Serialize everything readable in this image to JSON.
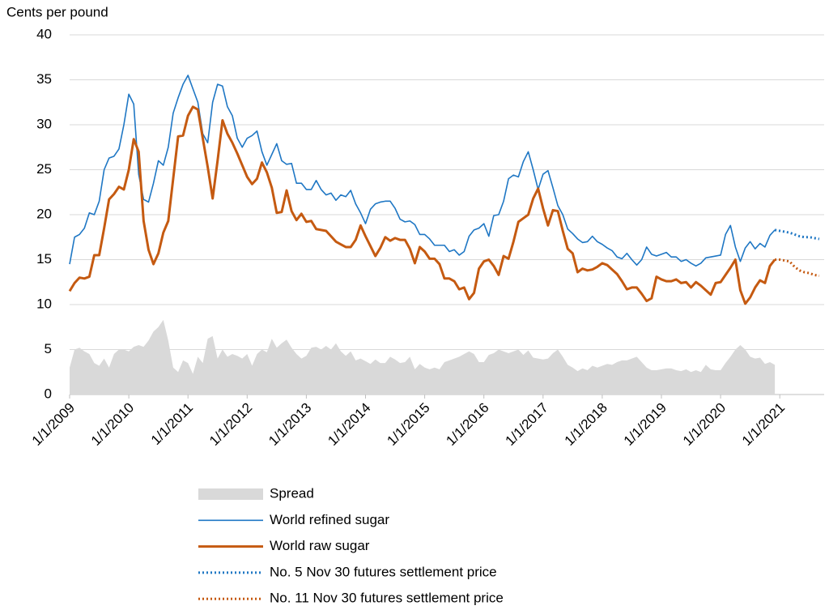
{
  "chart_data": {
    "type": "line",
    "y_label": "Cents per pound",
    "x": [
      "1/1/2009",
      "2/1/2009",
      "3/1/2009",
      "4/1/2009",
      "5/1/2009",
      "6/1/2009",
      "7/1/2009",
      "8/1/2009",
      "9/1/2009",
      "10/1/2009",
      "11/1/2009",
      "12/1/2009",
      "1/1/2010",
      "2/1/2010",
      "3/1/2010",
      "4/1/2010",
      "5/1/2010",
      "6/1/2010",
      "7/1/2010",
      "8/1/2010",
      "9/1/2010",
      "10/1/2010",
      "11/1/2010",
      "12/1/2010",
      "1/1/2011",
      "2/1/2011",
      "3/1/2011",
      "4/1/2011",
      "5/1/2011",
      "6/1/2011",
      "7/1/2011",
      "8/1/2011",
      "9/1/2011",
      "10/1/2011",
      "11/1/2011",
      "12/1/2011",
      "1/1/2012",
      "2/1/2012",
      "3/1/2012",
      "4/1/2012",
      "5/1/2012",
      "6/1/2012",
      "7/1/2012",
      "8/1/2012",
      "9/1/2012",
      "10/1/2012",
      "11/1/2012",
      "12/1/2012",
      "1/1/2013",
      "2/1/2013",
      "3/1/2013",
      "4/1/2013",
      "5/1/2013",
      "6/1/2013",
      "7/1/2013",
      "8/1/2013",
      "9/1/2013",
      "10/1/2013",
      "11/1/2013",
      "12/1/2013",
      "1/1/2014",
      "2/1/2014",
      "3/1/2014",
      "4/1/2014",
      "5/1/2014",
      "6/1/2014",
      "7/1/2014",
      "8/1/2014",
      "9/1/2014",
      "10/1/2014",
      "11/1/2014",
      "12/1/2014",
      "1/1/2015",
      "2/1/2015",
      "3/1/2015",
      "4/1/2015",
      "5/1/2015",
      "6/1/2015",
      "7/1/2015",
      "8/1/2015",
      "9/1/2015",
      "10/1/2015",
      "11/1/2015",
      "12/1/2015",
      "1/1/2016",
      "2/1/2016",
      "3/1/2016",
      "4/1/2016",
      "5/1/2016",
      "6/1/2016",
      "7/1/2016",
      "8/1/2016",
      "9/1/2016",
      "10/1/2016",
      "11/1/2016",
      "12/1/2016",
      "1/1/2017",
      "2/1/2017",
      "3/1/2017",
      "4/1/2017",
      "5/1/2017",
      "6/1/2017",
      "7/1/2017",
      "8/1/2017",
      "9/1/2017",
      "10/1/2017",
      "11/1/2017",
      "12/1/2017",
      "1/1/2018",
      "2/1/2018",
      "3/1/2018",
      "4/1/2018",
      "5/1/2018",
      "6/1/2018",
      "7/1/2018",
      "8/1/2018",
      "9/1/2018",
      "10/1/2018",
      "11/1/2018",
      "12/1/2018",
      "1/1/2019",
      "2/1/2019",
      "3/1/2019",
      "4/1/2019",
      "5/1/2019",
      "6/1/2019",
      "7/1/2019",
      "8/1/2019",
      "9/1/2019",
      "10/1/2019",
      "11/1/2019",
      "12/1/2019",
      "1/1/2020",
      "2/1/2020",
      "3/1/2020",
      "4/1/2020",
      "5/1/2020",
      "6/1/2020",
      "7/1/2020",
      "8/1/2020",
      "9/1/2020",
      "10/1/2020",
      "11/1/2020",
      "12/1/2020"
    ],
    "series": [
      {
        "name": "Spread",
        "kind": "area",
        "color": "#d9d9d9",
        "values": [
          3,
          5,
          5.2,
          4.8,
          4.5,
          3.5,
          3.2,
          4,
          3,
          4.5,
          5,
          5,
          4.8,
          5.3,
          5.5,
          5.3,
          6,
          7,
          7.5,
          8.3,
          6,
          3,
          2.5,
          3.8,
          3.5,
          2.3,
          4.2,
          3.5,
          6.2,
          6.5,
          4,
          5,
          4.2,
          4.5,
          4.3,
          4,
          4.5,
          3.2,
          4.5,
          5,
          4.7,
          6.2,
          5.2,
          5.7,
          6.1,
          5.2,
          4.5,
          4,
          4.3,
          5.2,
          5.3,
          5,
          5.4,
          5,
          5.7,
          4.8,
          4.3,
          4.8,
          3.8,
          4,
          3.7,
          3.4,
          3.9,
          3.5,
          3.5,
          4.2,
          3.9,
          3.5,
          3.6,
          4.2,
          2.8,
          3.4,
          3,
          2.8,
          3,
          2.8,
          3.6,
          3.8,
          4,
          4.2,
          4.5,
          4.8,
          4.5,
          3.6,
          3.6,
          4.4,
          4.6,
          5,
          4.8,
          4.6,
          4.8,
          5,
          4.4,
          4.9,
          4.1,
          4,
          3.9,
          4,
          4.6,
          5,
          4.2,
          3.3,
          3,
          2.6,
          2.9,
          2.7,
          3.2,
          3,
          3.2,
          3.4,
          3.3,
          3.6,
          3.8,
          3.8,
          4,
          4.2,
          3.6,
          3,
          2.7,
          2.7,
          2.8,
          2.9,
          2.9,
          2.7,
          2.6,
          2.8,
          2.5,
          2.7,
          2.5,
          3.3,
          2.8,
          2.7,
          2.7,
          3.5,
          4.2,
          5,
          5.5,
          5,
          4.2,
          4,
          4.1,
          3.4,
          3.6,
          3.3
        ]
      },
      {
        "name": "World refined sugar",
        "kind": "line",
        "color": "#1f77c4",
        "width": 1.6,
        "values": [
          14.5,
          17.5,
          17.8,
          18.5,
          20.2,
          20,
          21.5,
          25,
          26.3,
          26.5,
          27.3,
          30,
          33.4,
          32.3,
          24.5,
          21.7,
          21.4,
          23.5,
          26,
          25.5,
          27.5,
          31.3,
          33,
          34.5,
          35.5,
          34,
          32.5,
          29,
          28,
          32.5,
          34.5,
          34.3,
          32,
          31,
          28.5,
          27.5,
          28.5,
          28.8,
          29.3,
          27,
          25.5,
          26.7,
          27.9,
          26,
          25.6,
          25.7,
          23.5,
          23.5,
          22.8,
          22.8,
          23.8,
          22.8,
          22.2,
          22.4,
          21.6,
          22.2,
          22,
          22.7,
          21.2,
          20.2,
          19,
          20.6,
          21.2,
          21.4,
          21.5,
          21.5,
          20.7,
          19.5,
          19.2,
          19.3,
          18.9,
          17.8,
          17.8,
          17.3,
          16.6,
          16.6,
          16.6,
          15.9,
          16.1,
          15.5,
          15.9,
          17.6,
          18.3,
          18.5,
          19,
          17.6,
          19.9,
          20,
          21.5,
          24,
          24.4,
          24.2,
          25.9,
          27,
          25,
          22.8,
          24.5,
          24.9,
          23,
          21,
          20,
          18.4,
          17.9,
          17.3,
          16.9,
          17,
          17.6,
          17,
          16.7,
          16.3,
          16,
          15.3,
          15.1,
          15.7,
          15,
          14.4,
          15,
          16.4,
          15.6,
          15.4,
          15.6,
          15.8,
          15.3,
          15.3,
          14.8,
          15,
          14.6,
          14.3,
          14.6,
          15.2,
          15.3,
          15.4,
          15.5,
          17.8,
          18.8,
          16.4,
          14.8,
          16.3,
          17,
          16.2,
          16.8,
          16.4,
          17.7,
          18.3
        ]
      },
      {
        "name": "World raw sugar",
        "kind": "line",
        "color": "#c55a11",
        "width": 3,
        "values": [
          11.5,
          12.4,
          13,
          12.9,
          13.1,
          15.5,
          15.5,
          18.5,
          21.7,
          22.3,
          23.1,
          22.8,
          25,
          28.4,
          27,
          19.3,
          16.1,
          14.5,
          15.7,
          18,
          19.3,
          24,
          28.7,
          28.8,
          31,
          32,
          31.7,
          28.5,
          25.3,
          21.8,
          26,
          30.5,
          29,
          28,
          26.8,
          25.5,
          24.2,
          23.4,
          24,
          25.8,
          24.7,
          23,
          20.2,
          20.3,
          22.7,
          20.4,
          19.4,
          20.1,
          19.2,
          19.3,
          18.4,
          18.3,
          18.2,
          17.6,
          17,
          16.7,
          16.4,
          16.4,
          17.2,
          18.8,
          17.6,
          16.5,
          15.4,
          16.3,
          17.5,
          17.1,
          17.4,
          17.2,
          17.2,
          16.2,
          14.6,
          16.4,
          15.9,
          15.1,
          15.1,
          14.5,
          12.9,
          12.9,
          12.6,
          11.7,
          11.9,
          10.6,
          11.3,
          14,
          14.8,
          15,
          14.3,
          13.3,
          15.4,
          15.1,
          17,
          19.2,
          19.6,
          20,
          21.8,
          22.9,
          20.7,
          18.8,
          20.5,
          20.4,
          18.2,
          16.2,
          15.7,
          13.6,
          14,
          13.8,
          13.9,
          14.2,
          14.6,
          14.4,
          13.9,
          13.4,
          12.6,
          11.7,
          11.9,
          11.9,
          11.2,
          10.4,
          10.7,
          13.1,
          12.8,
          12.6,
          12.6,
          12.8,
          12.4,
          12.5,
          11.9,
          12.5,
          12.1,
          11.6,
          11.1,
          12.4,
          12.5,
          13.3,
          14.1,
          15,
          11.6,
          10.1,
          10.8,
          11.9,
          12.7,
          12.4,
          14.3,
          15
        ]
      },
      {
        "name": "No. 5 Nov 30 futures settlement price",
        "kind": "line",
        "style": "dotted",
        "color": "#1f77c4",
        "width": 3,
        "x": [
          "12/1/2020",
          "1/1/2021",
          "2/1/2021",
          "3/1/2021",
          "4/1/2021",
          "5/1/2021",
          "6/1/2021",
          "7/1/2021",
          "8/1/2021",
          "9/1/2021"
        ],
        "values": [
          18.3,
          18.2,
          18.1,
          18,
          17.8,
          17.6,
          17.5,
          17.5,
          17.4,
          17.3
        ]
      },
      {
        "name": "No. 11 Nov 30 futures settlement price",
        "kind": "line",
        "style": "dotted",
        "color": "#c55a11",
        "width": 3,
        "x": [
          "12/1/2020",
          "1/1/2021",
          "2/1/2021",
          "3/1/2021",
          "4/1/2021",
          "5/1/2021",
          "6/1/2021",
          "7/1/2021",
          "8/1/2021",
          "9/1/2021"
        ],
        "values": [
          15,
          15,
          14.9,
          14.8,
          14.2,
          13.8,
          13.6,
          13.5,
          13.3,
          13.2
        ]
      }
    ],
    "xlim": [
      "1/1/2009",
      "10/1/2021"
    ],
    "xticks": [
      "1/1/2009",
      "1/1/2010",
      "1/1/2011",
      "1/1/2012",
      "1/1/2013",
      "1/1/2014",
      "1/1/2015",
      "1/1/2016",
      "1/1/2017",
      "1/1/2018",
      "1/1/2019",
      "1/1/2020",
      "1/1/2021"
    ],
    "ylim": [
      0,
      40
    ],
    "yticks": [
      0,
      5,
      10,
      15,
      20,
      25,
      30,
      35,
      40
    ],
    "grid": true
  }
}
